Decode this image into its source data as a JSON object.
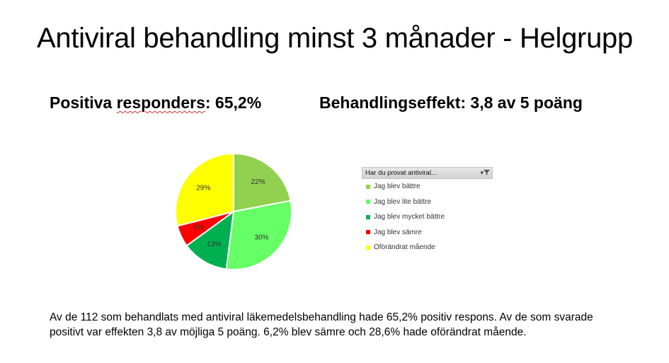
{
  "title": "Antiviral behandling minst 3 månader - Helgrupp",
  "stats": {
    "left_prefix": "Positiva ",
    "left_underlined": "responders",
    "left_suffix": ": 65,2%",
    "right": "Behandlingseffekt: 3,8 av 5 poäng"
  },
  "legend": {
    "header": "Har du provat antiviral...",
    "filter_icon": "filter-dropdown-icon"
  },
  "chart_data": {
    "type": "pie",
    "title": "",
    "slices": [
      {
        "label": "Jag blev bättre",
        "value": 22,
        "display": "22%",
        "color": "#92d050"
      },
      {
        "label": "Jag blev lite bättre",
        "value": 30,
        "display": "30%",
        "color": "#66ff66"
      },
      {
        "label": "Jag blev mycket bättre",
        "value": 13,
        "display": "13%",
        "color": "#00b050"
      },
      {
        "label": "Jag blev sämre",
        "value": 6,
        "display": "6%",
        "color": "#ff0000"
      },
      {
        "label": "Oförändrat mående",
        "value": 29,
        "display": "29%",
        "color": "#ffff00"
      }
    ],
    "legend_position": "right"
  },
  "paragraph": "Av de 112 som behandlats med antiviral läkemedelsbehandling hade 65,2% positiv respons. Av de som svarade positivt var effekten 3,8 av möjliga 5 poäng. 6,2% blev sämre och 28,6% hade oförändrat mående."
}
